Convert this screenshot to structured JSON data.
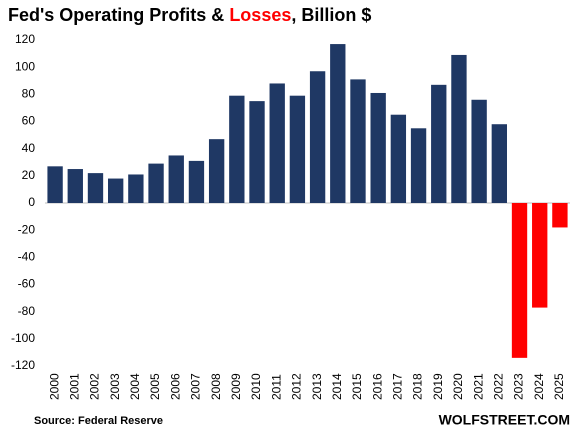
{
  "chart_data": {
    "type": "bar",
    "title": [
      "Fed's Operating Profits & ",
      "Losses",
      ", Billion $"
    ],
    "title_colors": [
      "#000000",
      "#ff0000",
      "#000000"
    ],
    "categories": [
      "2000",
      "2001",
      "2002",
      "2003",
      "2004",
      "2005",
      "2006",
      "2007",
      "2008",
      "2009",
      "2010",
      "2011",
      "2012",
      "2013",
      "2014",
      "2015",
      "2016",
      "2017",
      "2018",
      "2019",
      "2020",
      "2021",
      "2022",
      "2023",
      "2024",
      "2025"
    ],
    "values": [
      27,
      25,
      22,
      18,
      21,
      29,
      35,
      31,
      47,
      79,
      75,
      88,
      79,
      97,
      117,
      91,
      81,
      65,
      55,
      87,
      109,
      76,
      58,
      -114,
      -77,
      -18
    ],
    "color": "#1f3864",
    "negative_color": "#ff0000",
    "ylim": [
      -120,
      120
    ],
    "yticks": [
      -120,
      -100,
      -80,
      -60,
      -40,
      -20,
      0,
      20,
      40,
      60,
      80,
      100,
      120
    ],
    "grid": false,
    "source": "Source: Federal Reserve",
    "brand": "WOLFSTREET.COM"
  }
}
